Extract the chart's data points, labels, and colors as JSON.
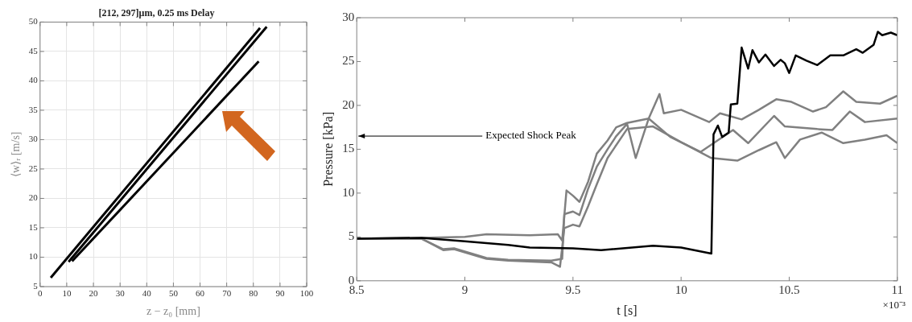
{
  "chart_data": [
    {
      "type": "line",
      "title": "[212, 297]μm, 0.25 ms Delay",
      "xlabel": "z − z₀ [mm]",
      "ylabel": "⟨w⟩ᵣ [m/s]",
      "xlim": [
        0,
        100
      ],
      "xticks": [
        0,
        10,
        20,
        30,
        40,
        50,
        60,
        70,
        80,
        90,
        100
      ],
      "ylim": [
        5,
        50
      ],
      "yticks": [
        5,
        10,
        15,
        20,
        25,
        30,
        35,
        40,
        45,
        50
      ],
      "grid": true,
      "legend": false,
      "line_style": "solid",
      "marker": "none",
      "series": [
        {
          "color": "#000000",
          "x": [
            4,
            82.5
          ],
          "values": [
            6.5,
            49
          ]
        },
        {
          "color": "#000000",
          "x": [
            10.7,
            85
          ],
          "values": [
            9.2,
            49.2
          ]
        },
        {
          "color": "#000000",
          "x": [
            12,
            82
          ],
          "values": [
            9.3,
            43.3
          ]
        }
      ]
    },
    {
      "type": "line",
      "xlabel": "t [s]",
      "ylabel": "Pressure [kPa]",
      "xlim": [
        8.5,
        11
      ],
      "xticks": [
        8.5,
        9,
        9.5,
        10,
        10.5,
        11
      ],
      "ylim": [
        0,
        30
      ],
      "yticks": [
        0,
        5,
        10,
        15,
        20,
        25,
        30
      ],
      "grid": false,
      "legend": false,
      "line_style": "solid",
      "marker": "none",
      "annotations": [
        "Expected Shock Peak",
        "×10⁻³"
      ],
      "series": [
        {
          "color": "#000000",
          "x": [
            8.5,
            8.8,
            9.0,
            9.2,
            9.3,
            9.5,
            9.63,
            9.87,
            10.0,
            10.14,
            10.15,
            10.17,
            10.19,
            10.22,
            10.23,
            10.26,
            10.28,
            10.31,
            10.33,
            10.36,
            10.39,
            10.43,
            10.46,
            10.48,
            10.5,
            10.53,
            10.58,
            10.63,
            10.69,
            10.75,
            10.81,
            10.84,
            10.89,
            10.91,
            10.93,
            10.97,
            11.0
          ],
          "values": [
            4.8,
            4.9,
            4.5,
            4.1,
            3.8,
            3.7,
            3.5,
            4.0,
            3.8,
            3.1,
            16.7,
            17.7,
            16.4,
            16.9,
            20.1,
            20.2,
            26.6,
            24.2,
            26.3,
            24.9,
            25.8,
            24.5,
            25.2,
            24.8,
            23.7,
            25.7,
            25.1,
            24.6,
            25.7,
            25.7,
            26.4,
            26.0,
            26.9,
            28.4,
            28.0,
            28.3,
            28.0
          ]
        },
        {
          "color": "#808080",
          "x": [
            8.5,
            8.8,
            9.0,
            9.1,
            9.3,
            9.43,
            9.45,
            9.47,
            9.5,
            9.53,
            9.57,
            9.61,
            9.66,
            9.7,
            9.75,
            9.85,
            9.9,
            9.92,
            10.0,
            10.13,
            10.18,
            10.28,
            10.36,
            10.44,
            10.51,
            10.61,
            10.67,
            10.75,
            10.81,
            10.92,
            11.0
          ],
          "values": [
            4.8,
            4.9,
            5.0,
            5.3,
            5.2,
            5.3,
            4.6,
            10.3,
            9.7,
            9.0,
            11.3,
            14.5,
            16.0,
            17.5,
            18.0,
            18.5,
            21.3,
            19.1,
            19.5,
            18.1,
            19.1,
            18.4,
            19.5,
            20.7,
            20.4,
            19.3,
            19.8,
            21.6,
            20.4,
            20.2,
            21.1
          ]
        },
        {
          "color": "#808080",
          "x": [
            8.5,
            8.8,
            8.9,
            8.95,
            9.1,
            9.2,
            9.4,
            9.45,
            9.46,
            9.5,
            9.53,
            9.57,
            9.61,
            9.66,
            9.7,
            9.75,
            9.79,
            9.85,
            9.95,
            10.09,
            10.24,
            10.31,
            10.43,
            10.48,
            10.63,
            10.7,
            10.78,
            10.85,
            11.0
          ],
          "values": [
            4.8,
            4.8,
            3.6,
            3.7,
            2.6,
            2.4,
            2.3,
            2.5,
            7.6,
            7.9,
            7.5,
            10.5,
            13.0,
            15.0,
            16.5,
            17.9,
            14.0,
            18.5,
            16.4,
            14.7,
            17.2,
            15.7,
            18.8,
            17.6,
            17.3,
            17.2,
            19.3,
            18.1,
            18.5
          ]
        },
        {
          "color": "#808080",
          "x": [
            8.5,
            8.8,
            8.9,
            8.95,
            9.1,
            9.2,
            9.4,
            9.44,
            9.46,
            9.5,
            9.53,
            9.57,
            9.61,
            9.66,
            9.75,
            9.87,
            10.0,
            10.14,
            10.26,
            10.36,
            10.44,
            10.48,
            10.55,
            10.65,
            10.75,
            10.85,
            10.95,
            11.0
          ],
          "values": [
            4.8,
            4.8,
            3.5,
            3.6,
            2.5,
            2.3,
            2.1,
            1.6,
            6.0,
            6.4,
            6.2,
            8.5,
            11.0,
            14.0,
            17.3,
            17.6,
            15.8,
            14.0,
            13.7,
            14.9,
            15.8,
            14.0,
            16.1,
            16.9,
            15.7,
            16.1,
            16.6,
            15.7
          ]
        }
      ]
    }
  ]
}
